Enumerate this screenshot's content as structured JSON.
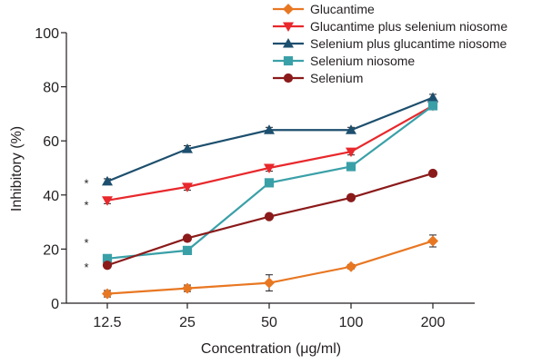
{
  "chart_data": {
    "type": "line",
    "xlabel": "Concentration (μg/ml)",
    "ylabel": "Inhibitory (%)",
    "categories": [
      "12.5",
      "25",
      "50",
      "100",
      "200"
    ],
    "ylim": [
      0,
      100
    ],
    "yticks": [
      "0",
      "20",
      "40",
      "60",
      "80",
      "100"
    ],
    "grid": false,
    "legend_position": "top-right",
    "series": [
      {
        "name": "Glucantime",
        "color": "#e87722",
        "marker": "diamond",
        "values": [
          3.5,
          5.5,
          7.5,
          13.5,
          23
        ],
        "errors": [
          1.2,
          1.2,
          3,
          0.8,
          2.2
        ]
      },
      {
        "name": "Glucantime plus selenium niosome",
        "color": "#e8282c",
        "marker": "triangle-down",
        "values": [
          38,
          43,
          50,
          56,
          73
        ],
        "errors": [
          1.2,
          1.2,
          1.2,
          1.2,
          1.5
        ]
      },
      {
        "name": "Selenium plus glucantime niosome",
        "color": "#1d4f6e",
        "marker": "triangle-up",
        "values": [
          45,
          57,
          64,
          64,
          76
        ],
        "errors": [
          1,
          1.2,
          1,
          1,
          1.2
        ]
      },
      {
        "name": "Selenium niosome",
        "color": "#3aa0a8",
        "marker": "square",
        "values": [
          16.5,
          19.5,
          44.5,
          50.5,
          73
        ],
        "errors": [
          0.8,
          0.8,
          1,
          1,
          1
        ]
      },
      {
        "name": "Selenium",
        "color": "#8b1a1a",
        "marker": "circle",
        "values": [
          14,
          24,
          32,
          39,
          48
        ],
        "errors": [
          0.8,
          0.8,
          0.8,
          0.8,
          0.8
        ]
      }
    ],
    "significance_markers": [
      {
        "text": "*",
        "y": 45.5
      },
      {
        "text": "*",
        "y": 37.5
      },
      {
        "text": "*",
        "y": 23.5
      },
      {
        "text": "*",
        "y": 14.5
      }
    ]
  }
}
